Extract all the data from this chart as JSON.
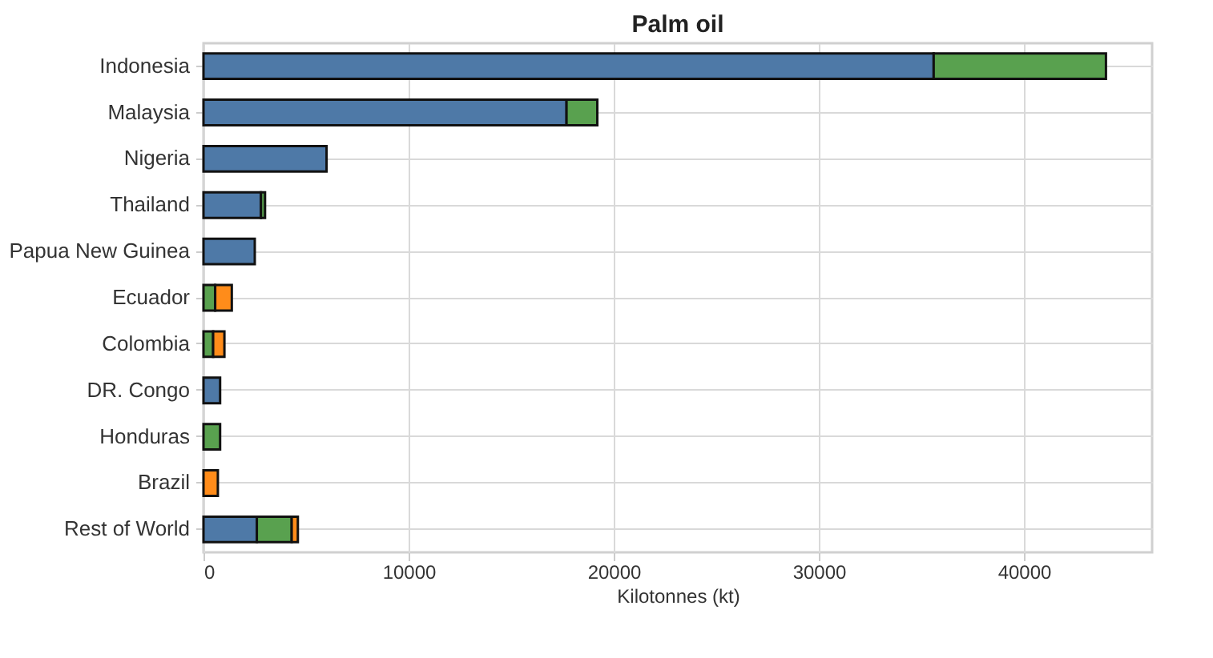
{
  "chart_data": {
    "type": "bar",
    "orientation": "horizontal",
    "stacked": true,
    "title": "Palm oil",
    "xlabel": "Kilotonnes (kt)",
    "categories": [
      "Indonesia",
      "Malaysia",
      "Nigeria",
      "Thailand",
      "Papua New Guinea",
      "Ecuador",
      "Colombia",
      "DR. Congo",
      "Honduras",
      "Brazil",
      "Rest of World"
    ],
    "series": [
      {
        "color": "#4e79a7",
        "values": [
          35600,
          17700,
          6000,
          2800,
          2500,
          null,
          null,
          810,
          null,
          null,
          2600
        ]
      },
      {
        "color": "#59a14f",
        "values": [
          8400,
          1500,
          null,
          200,
          null,
          570,
          470,
          null,
          810,
          null,
          1700
        ]
      },
      {
        "color": "#ff8c1a",
        "values": [
          null,
          null,
          null,
          null,
          null,
          810,
          550,
          null,
          null,
          700,
          300
        ]
      }
    ],
    "xlim": [
      0,
      46250
    ],
    "xticks": [
      0,
      10000,
      20000,
      30000,
      40000
    ],
    "grid": true
  }
}
